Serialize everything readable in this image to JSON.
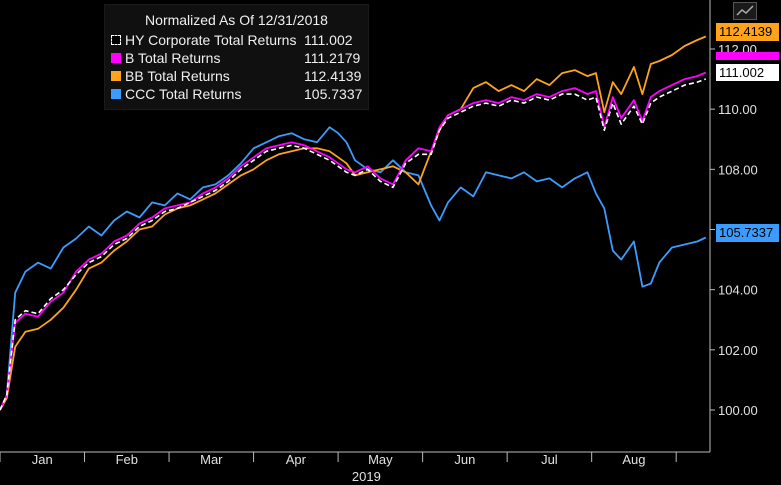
{
  "legend": {
    "title": "Normalized As Of 12/31/2018",
    "rows": [
      {
        "name": "HY Corporate Total Returns",
        "value": "111.002",
        "color": "#ffffff",
        "style": "dashed"
      },
      {
        "name": "B Total Returns",
        "value": "111.2179",
        "color": "#ff00ff",
        "style": "solid"
      },
      {
        "name": "BB Total Returns",
        "value": "112.4139",
        "color": "#ffa31a",
        "style": "solid"
      },
      {
        "name": "CCC Total Returns",
        "value": "105.7337",
        "color": "#3b9cff",
        "style": "solid"
      }
    ]
  },
  "icons": {
    "chart_icon": "line-chart-icon"
  },
  "chart_data": {
    "type": "line",
    "title": "Normalized As Of 12/31/2018",
    "xlabel": "2019",
    "ylabel": "",
    "x_ticks": [
      "Jan",
      "Feb",
      "Mar",
      "Apr",
      "May",
      "Jun",
      "Jul",
      "Aug"
    ],
    "x_tick_months": [
      0.5,
      1.5,
      2.5,
      3.5,
      4.5,
      5.5,
      6.5,
      7.5
    ],
    "x_range_months": [
      0,
      8.4
    ],
    "y_ticks": [
      100.0,
      102.0,
      104.0,
      106.0,
      108.0,
      110.0,
      112.0
    ],
    "y_tick_labels": [
      "100.00",
      "102.00",
      "104.00",
      "106.00",
      "108.00",
      "110.00",
      "112.00"
    ],
    "ylim": [
      99.2,
      113.5
    ],
    "grid": false,
    "legend_position": "top-left",
    "last_value_badges": [
      "112.4139",
      "111.2179",
      "111.002",
      "105.7337"
    ],
    "series": [
      {
        "name": "CCC Total Returns",
        "color": "#3b9cff",
        "x_months": [
          0,
          0.08,
          0.18,
          0.3,
          0.45,
          0.6,
          0.75,
          0.9,
          1.05,
          1.2,
          1.35,
          1.5,
          1.65,
          1.8,
          1.95,
          2.1,
          2.25,
          2.4,
          2.55,
          2.7,
          2.85,
          3.0,
          3.15,
          3.3,
          3.45,
          3.6,
          3.75,
          3.9,
          4.0,
          4.1,
          4.2,
          4.35,
          4.5,
          4.65,
          4.8,
          4.95,
          5.1,
          5.2,
          5.3,
          5.45,
          5.6,
          5.75,
          5.9,
          6.05,
          6.2,
          6.35,
          6.5,
          6.65,
          6.8,
          6.95,
          7.05,
          7.15,
          7.25,
          7.35,
          7.5,
          7.6,
          7.7,
          7.8,
          7.95,
          8.1,
          8.25,
          8.35
        ],
        "values": [
          100.0,
          100.5,
          103.9,
          104.6,
          104.9,
          104.7,
          105.4,
          105.7,
          106.1,
          105.8,
          106.3,
          106.6,
          106.4,
          106.9,
          106.8,
          107.2,
          107.0,
          107.4,
          107.5,
          107.8,
          108.2,
          108.7,
          108.9,
          109.1,
          109.2,
          109.0,
          108.9,
          109.4,
          109.2,
          108.9,
          108.3,
          108.0,
          107.9,
          108.3,
          107.9,
          107.8,
          106.8,
          106.3,
          106.9,
          107.4,
          107.1,
          107.9,
          107.8,
          107.7,
          107.9,
          107.6,
          107.7,
          107.4,
          107.7,
          107.9,
          107.2,
          106.7,
          105.3,
          105.0,
          105.6,
          104.1,
          104.2,
          104.9,
          105.4,
          105.5,
          105.6,
          105.7337
        ]
      },
      {
        "name": "BB Total Returns",
        "color": "#ffa31a",
        "x_months": [
          0,
          0.08,
          0.18,
          0.3,
          0.45,
          0.6,
          0.75,
          0.9,
          1.05,
          1.2,
          1.35,
          1.5,
          1.65,
          1.8,
          1.95,
          2.1,
          2.25,
          2.4,
          2.55,
          2.7,
          2.85,
          3.0,
          3.15,
          3.3,
          3.45,
          3.6,
          3.75,
          3.9,
          4.0,
          4.1,
          4.2,
          4.35,
          4.5,
          4.65,
          4.8,
          4.95,
          5.1,
          5.2,
          5.3,
          5.45,
          5.6,
          5.75,
          5.9,
          6.05,
          6.2,
          6.35,
          6.5,
          6.65,
          6.8,
          6.95,
          7.05,
          7.15,
          7.25,
          7.35,
          7.5,
          7.6,
          7.7,
          7.8,
          7.95,
          8.1,
          8.25,
          8.35
        ],
        "values": [
          100.0,
          100.4,
          102.1,
          102.6,
          102.7,
          103.0,
          103.4,
          104.0,
          104.7,
          104.9,
          105.3,
          105.6,
          106.0,
          106.1,
          106.5,
          106.7,
          106.8,
          107.0,
          107.2,
          107.5,
          107.8,
          108.0,
          108.3,
          108.5,
          108.6,
          108.7,
          108.7,
          108.6,
          108.4,
          108.2,
          107.8,
          107.9,
          108.0,
          108.1,
          107.9,
          107.5,
          108.6,
          109.3,
          109.8,
          110.0,
          110.7,
          110.9,
          110.6,
          110.8,
          110.6,
          111.0,
          110.8,
          111.2,
          111.3,
          111.1,
          111.2,
          109.9,
          110.9,
          110.5,
          111.4,
          110.5,
          111.5,
          111.6,
          111.8,
          112.1,
          112.3,
          112.4139
        ]
      },
      {
        "name": "B Total Returns",
        "color": "#ff00ff",
        "x_months": [
          0,
          0.08,
          0.18,
          0.3,
          0.45,
          0.6,
          0.75,
          0.9,
          1.05,
          1.2,
          1.35,
          1.5,
          1.65,
          1.8,
          1.95,
          2.1,
          2.25,
          2.4,
          2.55,
          2.7,
          2.85,
          3.0,
          3.15,
          3.3,
          3.45,
          3.6,
          3.75,
          3.9,
          4.0,
          4.1,
          4.2,
          4.35,
          4.5,
          4.65,
          4.8,
          4.95,
          5.1,
          5.2,
          5.3,
          5.45,
          5.6,
          5.75,
          5.9,
          6.05,
          6.2,
          6.35,
          6.5,
          6.65,
          6.8,
          6.95,
          7.05,
          7.15,
          7.25,
          7.35,
          7.5,
          7.6,
          7.7,
          7.8,
          7.95,
          8.1,
          8.25,
          8.35
        ],
        "values": [
          100.0,
          100.5,
          102.9,
          103.2,
          103.1,
          103.6,
          103.9,
          104.6,
          105.0,
          105.2,
          105.6,
          105.8,
          106.2,
          106.4,
          106.7,
          106.8,
          106.9,
          107.2,
          107.4,
          107.7,
          108.1,
          108.4,
          108.7,
          108.8,
          108.9,
          108.8,
          108.6,
          108.4,
          108.2,
          108.0,
          107.9,
          108.1,
          107.7,
          107.5,
          108.3,
          108.7,
          108.6,
          109.4,
          109.8,
          110.0,
          110.2,
          110.3,
          110.2,
          110.4,
          110.3,
          110.5,
          110.4,
          110.6,
          110.7,
          110.5,
          110.6,
          109.4,
          110.4,
          109.7,
          110.3,
          109.6,
          110.4,
          110.6,
          110.8,
          111.0,
          111.1,
          111.2179
        ]
      },
      {
        "name": "HY Corporate Total Returns",
        "color": "#ffffff",
        "x_months": [
          0,
          0.08,
          0.18,
          0.3,
          0.45,
          0.6,
          0.75,
          0.9,
          1.05,
          1.2,
          1.35,
          1.5,
          1.65,
          1.8,
          1.95,
          2.1,
          2.25,
          2.4,
          2.55,
          2.7,
          2.85,
          3.0,
          3.15,
          3.3,
          3.45,
          3.6,
          3.75,
          3.9,
          4.0,
          4.1,
          4.2,
          4.35,
          4.5,
          4.65,
          4.8,
          4.95,
          5.1,
          5.2,
          5.3,
          5.45,
          5.6,
          5.75,
          5.9,
          6.05,
          6.2,
          6.35,
          6.5,
          6.65,
          6.8,
          6.95,
          7.05,
          7.15,
          7.25,
          7.35,
          7.5,
          7.6,
          7.7,
          7.8,
          7.95,
          8.1,
          8.25,
          8.35
        ],
        "values": [
          100.0,
          100.5,
          103.0,
          103.3,
          103.2,
          103.7,
          104.0,
          104.5,
          104.9,
          105.1,
          105.5,
          105.7,
          106.1,
          106.3,
          106.6,
          106.7,
          106.9,
          107.1,
          107.3,
          107.6,
          108.0,
          108.3,
          108.6,
          108.7,
          108.8,
          108.7,
          108.5,
          108.3,
          108.1,
          107.9,
          107.8,
          108.0,
          107.6,
          107.4,
          108.2,
          108.5,
          108.5,
          109.3,
          109.7,
          109.9,
          110.1,
          110.2,
          110.1,
          110.3,
          110.2,
          110.4,
          110.3,
          110.5,
          110.5,
          110.3,
          110.4,
          109.3,
          110.2,
          109.5,
          110.1,
          109.5,
          110.2,
          110.4,
          110.6,
          110.8,
          110.9,
          111.002
        ]
      }
    ]
  }
}
